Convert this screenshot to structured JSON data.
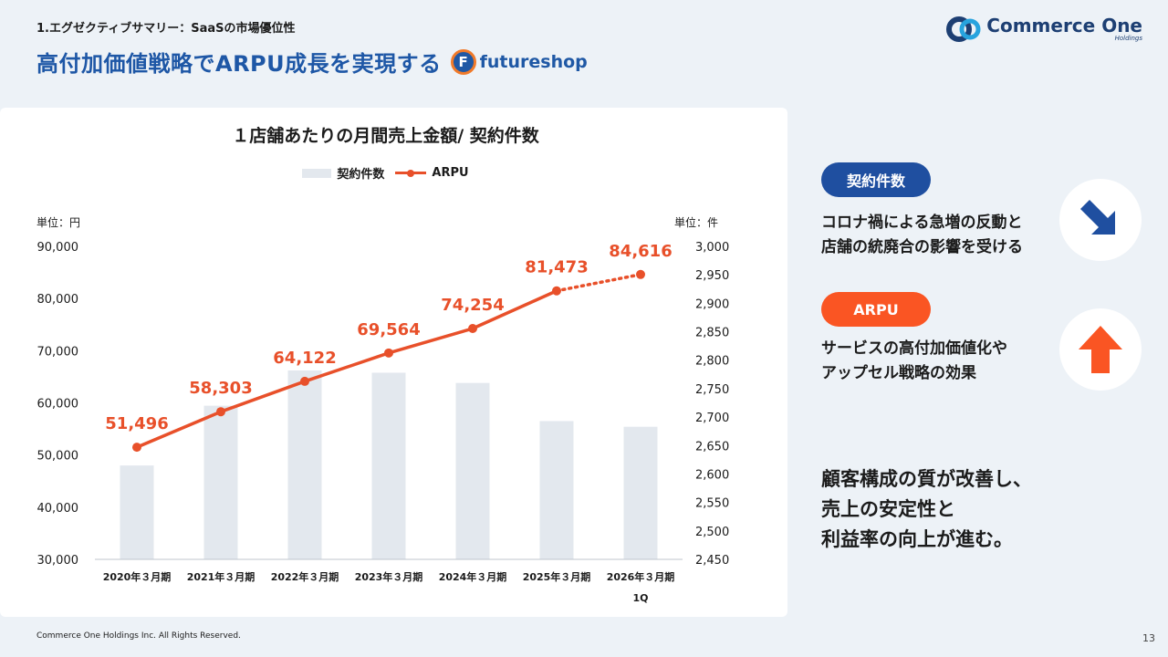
{
  "header": {
    "section": "1.エグゼクティブサマリー：SaaSの市場優位性",
    "title": "高付加価値戦略でARPU成長を実現する",
    "partner_logo_letter": "F",
    "partner_logo_text": "futureshop",
    "company_name": "Commerce One",
    "company_sub": "Holdings"
  },
  "chart_data": {
    "type": "bar",
    "title": "１店舗あたりの月間売上金額/ 契約件数",
    "categories": [
      "2020年３月期",
      "2021年３月期",
      "2022年３月期",
      "2023年３月期",
      "2024年３月期",
      "2025年３月期",
      "2026年３月期"
    ],
    "category_sublabels": [
      "",
      "",
      "",
      "",
      "",
      "",
      "1Q"
    ],
    "series": [
      {
        "name": "契約件数",
        "type": "bar",
        "axis": "right",
        "values": [
          2615,
          2720,
          2782,
          2778,
          2760,
          2693,
          2683
        ],
        "color": "#e3e8ee"
      },
      {
        "name": "ARPU",
        "type": "line",
        "axis": "left",
        "values": [
          51496,
          58303,
          64122,
          69564,
          74254,
          81473,
          84616
        ],
        "labels": [
          "51,496",
          "58,303",
          "64,122",
          "69,564",
          "74,254",
          "81,473",
          "84,616"
        ],
        "color": "#e8502a",
        "last_segment_dotted": true
      }
    ],
    "left_axis": {
      "unit_label": "単位：円",
      "ylim": [
        30000,
        90000
      ],
      "ticks": [
        "30,000",
        "40,000",
        "50,000",
        "60,000",
        "70,000",
        "80,000",
        "90,000"
      ]
    },
    "right_axis": {
      "unit_label": "単位：件",
      "ylim": [
        2450,
        3000
      ],
      "ticks": [
        "2,450",
        "2,500",
        "2,550",
        "2,600",
        "2,650",
        "2,700",
        "2,750",
        "2,800",
        "2,850",
        "2,900",
        "2,950",
        "3,000"
      ]
    },
    "legend_position": "top-center",
    "grid": false
  },
  "sidebar": {
    "contracts_label": "契約件数",
    "contracts_text_1": "コロナ禍による急増の反動と",
    "contracts_text_2": "店舗の統廃合の影響を受ける",
    "contracts_icon": "arrow-down-right-icon",
    "contracts_color": "#1f4fa0",
    "arpu_label": "ARPU",
    "arpu_text_1": "サービスの高付加価値化や",
    "arpu_text_2": "アップセル戦略の効果",
    "arpu_icon": "arrow-up-icon",
    "arpu_color": "#fa5523"
  },
  "conclusion": {
    "line1": "顧客構成の質が改善し、",
    "line2": "売上の安定性と",
    "line3": "利益率の向上が進む。"
  },
  "footer": {
    "copyright": "Commerce One Holdings Inc. All Rights Reserved.",
    "page": "13"
  }
}
